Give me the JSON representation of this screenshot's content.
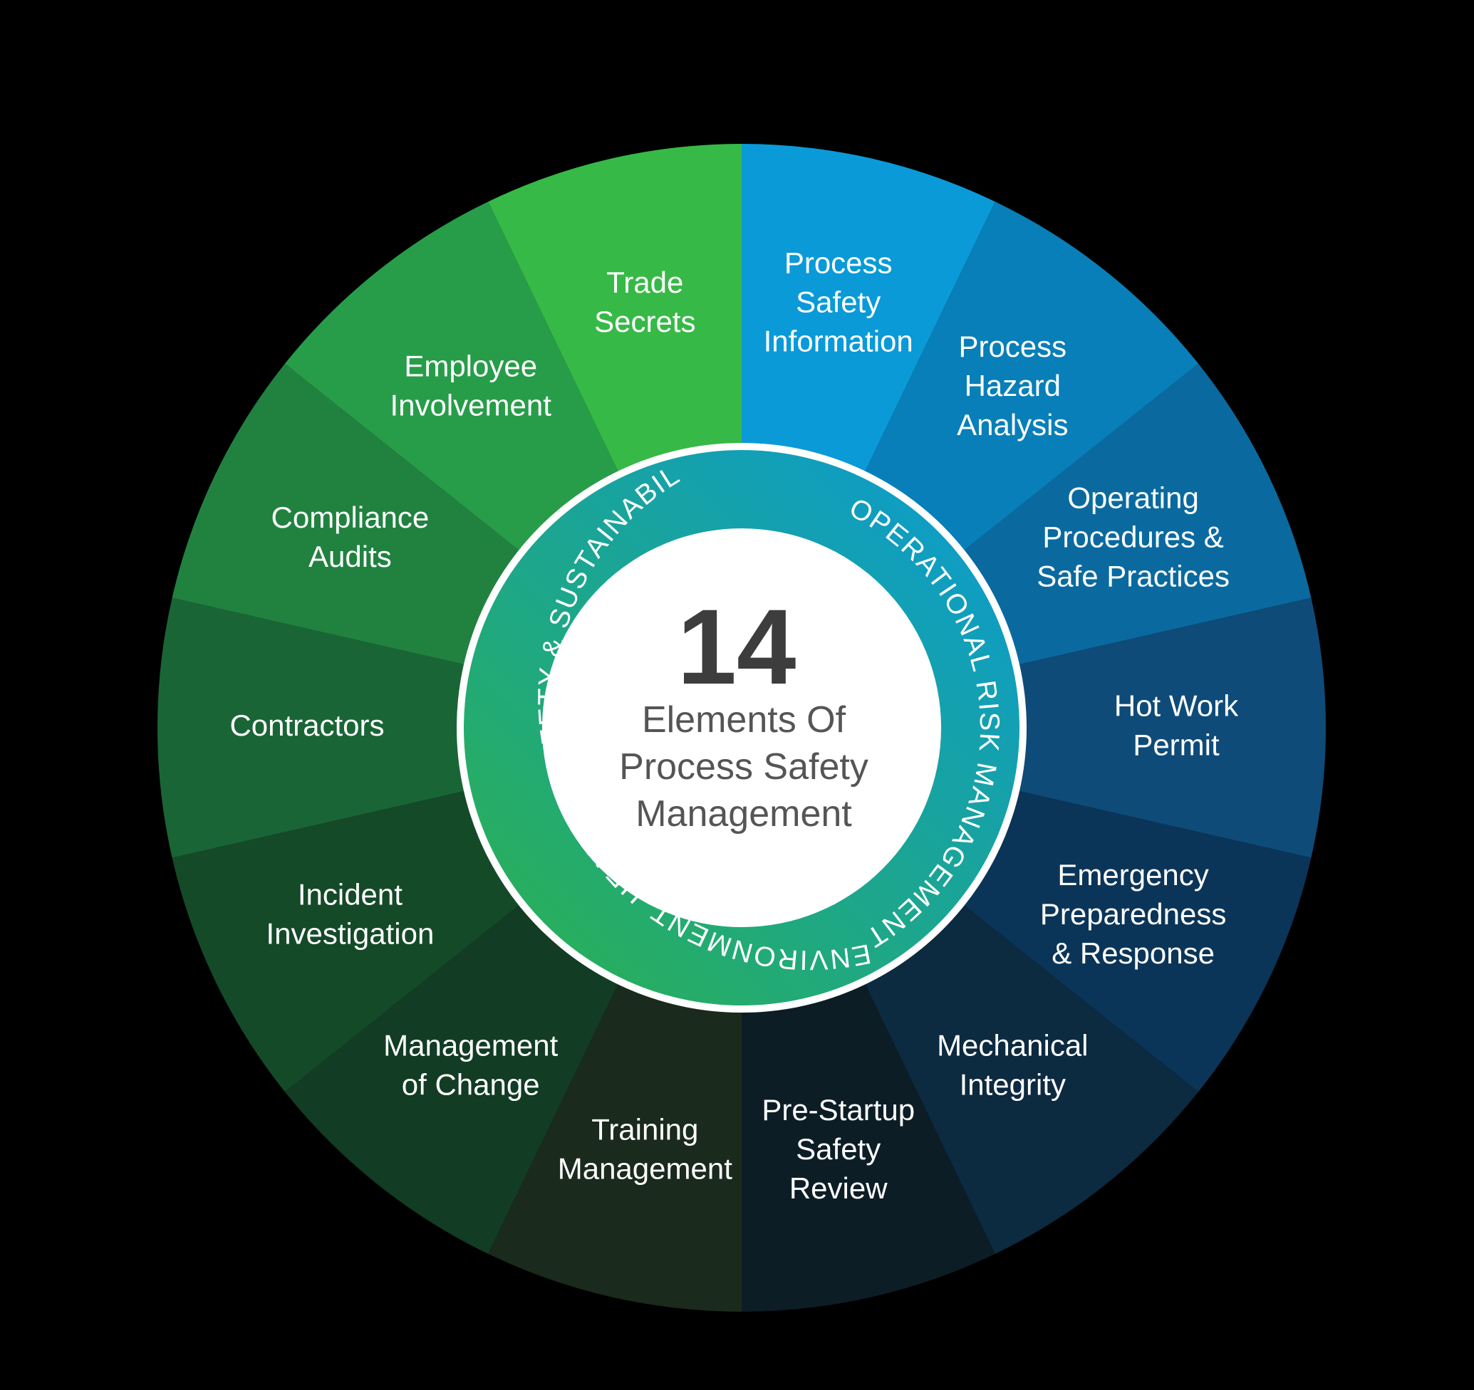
{
  "center": {
    "number": "14",
    "lines": [
      "Elements Of",
      "Process Safety",
      "Management"
    ]
  },
  "ring": {
    "left_text": "ENVIRONMENT, HEALTH, SAFETY & SUSTAINABILITY",
    "right_text": "OPERATIONAL RISK MANAGEMENT",
    "gradient_colors": [
      "#2db14a",
      "#0a9ad8"
    ]
  },
  "segments": [
    {
      "id": "process-safety-information",
      "lines": [
        "Process",
        "Safety",
        "Information"
      ],
      "color": "#0a9ad8"
    },
    {
      "id": "process-hazard-analysis",
      "lines": [
        "Process",
        "Hazard",
        "Analysis"
      ],
      "color": "#087fb8"
    },
    {
      "id": "operating-procedures",
      "lines": [
        "Operating",
        "Procedures &",
        "Safe Practices"
      ],
      "color": "#0a6aa0"
    },
    {
      "id": "hot-work-permit",
      "lines": [
        "Hot Work",
        "Permit"
      ],
      "color": "#0f4b78"
    },
    {
      "id": "emergency-preparedness",
      "lines": [
        "Emergency",
        "Preparedness",
        "& Response"
      ],
      "color": "#0b3558"
    },
    {
      "id": "mechanical-integrity",
      "lines": [
        "Mechanical",
        "Integrity"
      ],
      "color": "#0c2a40"
    },
    {
      "id": "pre-startup-safety-review",
      "lines": [
        "Pre-Startup",
        "Safety",
        "Review"
      ],
      "color": "#0c1d26"
    },
    {
      "id": "training-management",
      "lines": [
        "Training",
        "Management"
      ],
      "color": "#1a2a1c"
    },
    {
      "id": "management-of-change",
      "lines": [
        "Management",
        "of Change"
      ],
      "color": "#123c24"
    },
    {
      "id": "incident-investigation",
      "lines": [
        "Incident",
        "Investigation"
      ],
      "color": "#154a29"
    },
    {
      "id": "contractors",
      "lines": [
        "Contractors"
      ],
      "color": "#1a6536"
    },
    {
      "id": "compliance-audits",
      "lines": [
        "Compliance",
        "Audits"
      ],
      "color": "#218240"
    },
    {
      "id": "employee-involvement",
      "lines": [
        "Employee",
        "Involvement"
      ],
      "color": "#279d49"
    },
    {
      "id": "trade-secrets",
      "lines": [
        "Trade",
        "Secrets"
      ],
      "color": "#37b947"
    }
  ]
}
